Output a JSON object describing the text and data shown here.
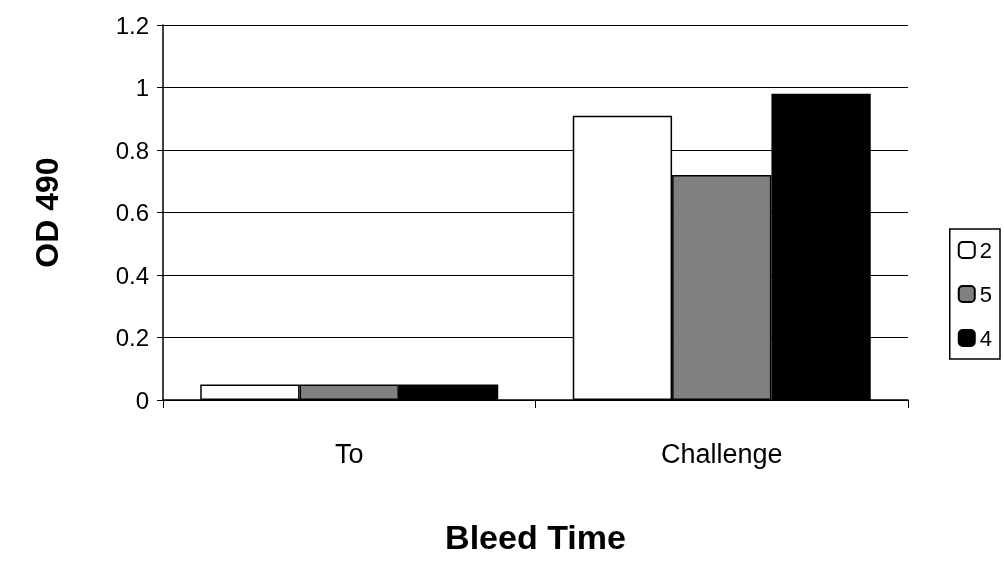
{
  "chart_data": {
    "type": "bar",
    "xlabel": "Bleed Time",
    "ylabel": "OD 490",
    "categories": [
      "To",
      "Challenge"
    ],
    "series": [
      {
        "name": "2",
        "color": "#ffffff",
        "values": [
          0.05,
          0.91
        ]
      },
      {
        "name": "5",
        "color": "#808080",
        "values": [
          0.05,
          0.72
        ]
      },
      {
        "name": "4",
        "color": "#000000",
        "values": [
          0.05,
          0.98
        ]
      }
    ],
    "ylim": [
      0,
      1.2
    ],
    "yticks": [
      0,
      0.2,
      0.4,
      0.6,
      0.8,
      1,
      1.2
    ],
    "grid": "y",
    "legend": "right"
  }
}
